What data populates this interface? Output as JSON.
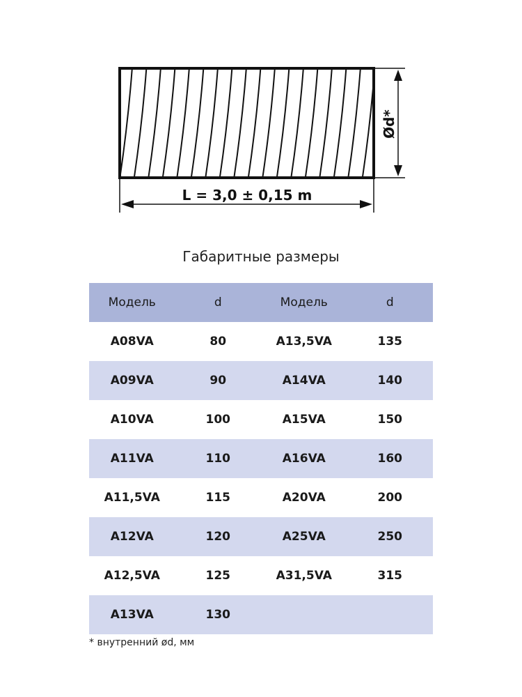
{
  "diagram": {
    "length_label": "L = 3,0 ± 0,15 m",
    "diameter_label": "Ød*"
  },
  "table": {
    "title": "Габаритные размеры",
    "header": [
      "Модель",
      "d",
      "Модель",
      "d"
    ],
    "rows": [
      [
        "A08VA",
        "80",
        "A13,5VA",
        "135"
      ],
      [
        "A09VA",
        "90",
        "A14VA",
        "140"
      ],
      [
        "A10VA",
        "100",
        "A15VA",
        "150"
      ],
      [
        "A11VA",
        "110",
        "A16VA",
        "160"
      ],
      [
        "A11,5VA",
        "115",
        "A20VA",
        "200"
      ],
      [
        "A12VA",
        "120",
        "A25VA",
        "250"
      ],
      [
        "A12,5VA",
        "125",
        "A31,5VA",
        "315"
      ],
      [
        "A13VA",
        "130"
      ]
    ]
  },
  "footnote": "* внутренний ød, мм"
}
